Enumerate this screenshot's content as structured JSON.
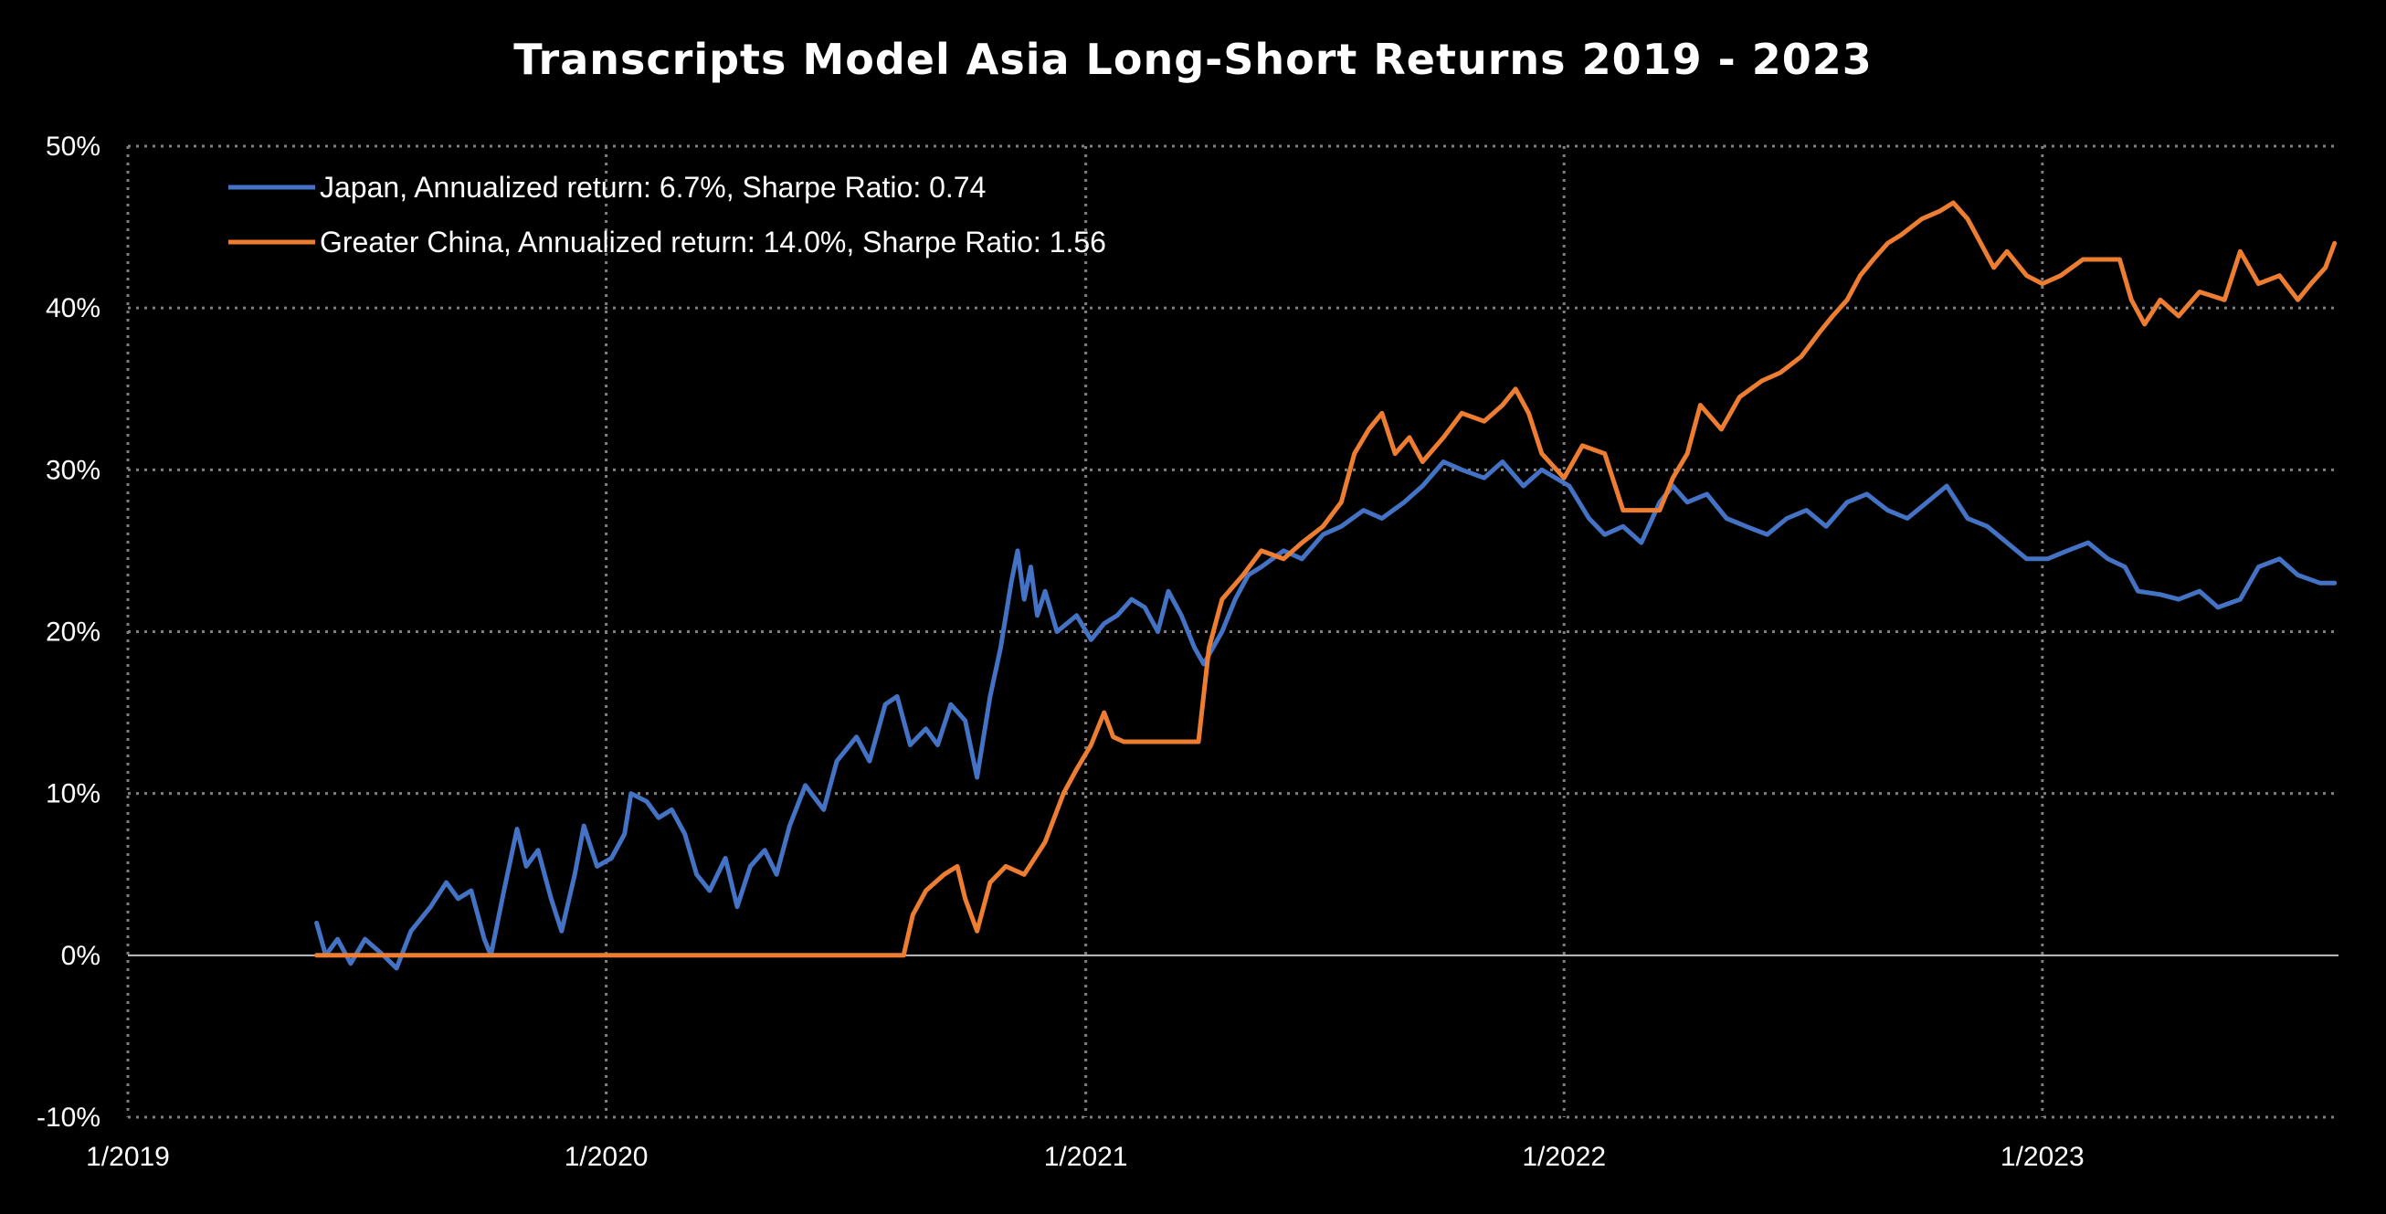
{
  "chart_data": {
    "type": "line",
    "title": "Transcripts Model Asia Long-Short Returns 2019 - 2023",
    "xlabel": "",
    "ylabel": "",
    "x_ticks": [
      "1/2019",
      "1/2020",
      "1/2021",
      "1/2022",
      "1/2023"
    ],
    "x_tick_values": [
      "2019-01-01",
      "2020-01-01",
      "2021-01-01",
      "2022-01-01",
      "2023-01-01"
    ],
    "xlim": [
      "2019-01-01",
      "2023-08-15"
    ],
    "y_ticks": [
      "-10%",
      "0%",
      "10%",
      "20%",
      "30%",
      "40%",
      "50%"
    ],
    "y_tick_values": [
      -10,
      0,
      10,
      20,
      30,
      40,
      50
    ],
    "ylim": [
      -10,
      50
    ],
    "grid": true,
    "legend_position": "top-left",
    "series": [
      {
        "name": "Japan, Annualized return: 6.7%, Sharpe Ratio: 0.74",
        "color": "#4472C4",
        "points": [
          [
            "2019-05-25",
            2.0
          ],
          [
            "2019-06-01",
            0.0
          ],
          [
            "2019-06-10",
            1.0
          ],
          [
            "2019-06-20",
            -0.5
          ],
          [
            "2019-07-01",
            1.0
          ],
          [
            "2019-07-15",
            0.0
          ],
          [
            "2019-07-25",
            -0.8
          ],
          [
            "2019-08-05",
            1.5
          ],
          [
            "2019-08-20",
            3.0
          ],
          [
            "2019-09-01",
            4.5
          ],
          [
            "2019-09-10",
            3.5
          ],
          [
            "2019-09-20",
            4.0
          ],
          [
            "2019-09-30",
            1.0
          ],
          [
            "2019-10-05",
            0.0
          ],
          [
            "2019-10-15",
            4.0
          ],
          [
            "2019-10-25",
            7.8
          ],
          [
            "2019-11-01",
            5.5
          ],
          [
            "2019-11-10",
            6.5
          ],
          [
            "2019-11-20",
            3.5
          ],
          [
            "2019-11-28",
            1.5
          ],
          [
            "2019-12-08",
            5.0
          ],
          [
            "2019-12-15",
            8.0
          ],
          [
            "2019-12-25",
            5.5
          ],
          [
            "2020-01-05",
            6.0
          ],
          [
            "2020-01-15",
            7.5
          ],
          [
            "2020-01-20",
            10.0
          ],
          [
            "2020-02-01",
            9.5
          ],
          [
            "2020-02-10",
            8.5
          ],
          [
            "2020-02-20",
            9.0
          ],
          [
            "2020-03-01",
            7.5
          ],
          [
            "2020-03-10",
            5.0
          ],
          [
            "2020-03-20",
            4.0
          ],
          [
            "2020-04-01",
            6.0
          ],
          [
            "2020-04-10",
            3.0
          ],
          [
            "2020-04-20",
            5.5
          ],
          [
            "2020-05-01",
            6.5
          ],
          [
            "2020-05-10",
            5.0
          ],
          [
            "2020-05-20",
            8.0
          ],
          [
            "2020-06-01",
            10.5
          ],
          [
            "2020-06-15",
            9.0
          ],
          [
            "2020-06-25",
            12.0
          ],
          [
            "2020-07-10",
            13.5
          ],
          [
            "2020-07-20",
            12.0
          ],
          [
            "2020-08-01",
            15.5
          ],
          [
            "2020-08-10",
            16.0
          ],
          [
            "2020-08-20",
            13.0
          ],
          [
            "2020-09-01",
            14.0
          ],
          [
            "2020-09-10",
            13.0
          ],
          [
            "2020-09-20",
            15.5
          ],
          [
            "2020-10-01",
            14.5
          ],
          [
            "2020-10-10",
            11.0
          ],
          [
            "2020-10-20",
            16.0
          ],
          [
            "2020-10-28",
            19.0
          ],
          [
            "2020-11-05",
            23.0
          ],
          [
            "2020-11-10",
            25.0
          ],
          [
            "2020-11-15",
            22.0
          ],
          [
            "2020-11-20",
            24.0
          ],
          [
            "2020-11-25",
            21.0
          ],
          [
            "2020-12-01",
            22.5
          ],
          [
            "2020-12-10",
            20.0
          ],
          [
            "2020-12-25",
            21.0
          ],
          [
            "2021-01-05",
            19.5
          ],
          [
            "2021-01-15",
            20.5
          ],
          [
            "2021-01-25",
            21.0
          ],
          [
            "2021-02-05",
            22.0
          ],
          [
            "2021-02-15",
            21.5
          ],
          [
            "2021-02-25",
            20.0
          ],
          [
            "2021-03-05",
            22.5
          ],
          [
            "2021-03-15",
            21.0
          ],
          [
            "2021-03-25",
            19.0
          ],
          [
            "2021-04-01",
            18.0
          ],
          [
            "2021-04-15",
            20.0
          ],
          [
            "2021-04-25",
            22.0
          ],
          [
            "2021-05-05",
            23.5
          ],
          [
            "2021-05-15",
            24.0
          ],
          [
            "2021-06-01",
            25.0
          ],
          [
            "2021-06-15",
            24.5
          ],
          [
            "2021-07-01",
            26.0
          ],
          [
            "2021-07-15",
            26.5
          ],
          [
            "2021-08-01",
            27.5
          ],
          [
            "2021-08-15",
            27.0
          ],
          [
            "2021-09-01",
            28.0
          ],
          [
            "2021-09-15",
            29.0
          ],
          [
            "2021-10-01",
            30.5
          ],
          [
            "2021-10-15",
            30.0
          ],
          [
            "2021-11-01",
            29.5
          ],
          [
            "2021-11-15",
            30.5
          ],
          [
            "2021-12-01",
            29.0
          ],
          [
            "2021-12-15",
            30.0
          ],
          [
            "2022-01-05",
            29.0
          ],
          [
            "2022-01-20",
            27.0
          ],
          [
            "2022-02-01",
            26.0
          ],
          [
            "2022-02-15",
            26.5
          ],
          [
            "2022-03-01",
            25.5
          ],
          [
            "2022-03-15",
            28.0
          ],
          [
            "2022-03-25",
            29.0
          ],
          [
            "2022-04-05",
            28.0
          ],
          [
            "2022-04-20",
            28.5
          ],
          [
            "2022-05-05",
            27.0
          ],
          [
            "2022-05-20",
            26.5
          ],
          [
            "2022-06-05",
            26.0
          ],
          [
            "2022-06-20",
            27.0
          ],
          [
            "2022-07-05",
            27.5
          ],
          [
            "2022-07-20",
            26.5
          ],
          [
            "2022-08-05",
            28.0
          ],
          [
            "2022-08-20",
            28.5
          ],
          [
            "2022-09-05",
            27.5
          ],
          [
            "2022-09-20",
            27.0
          ],
          [
            "2022-10-05",
            28.0
          ],
          [
            "2022-10-20",
            29.0
          ],
          [
            "2022-11-05",
            27.0
          ],
          [
            "2022-11-20",
            26.5
          ],
          [
            "2022-12-05",
            25.5
          ],
          [
            "2022-12-20",
            24.5
          ],
          [
            "2023-01-05",
            24.5
          ],
          [
            "2023-01-20",
            25.0
          ],
          [
            "2023-02-05",
            25.5
          ],
          [
            "2023-02-20",
            24.5
          ],
          [
            "2023-03-05",
            24.0
          ],
          [
            "2023-03-15",
            22.5
          ],
          [
            "2023-04-01",
            22.3
          ],
          [
            "2023-04-15",
            22.0
          ],
          [
            "2023-05-01",
            22.5
          ],
          [
            "2023-05-15",
            21.5
          ],
          [
            "2023-06-01",
            22.0
          ],
          [
            "2023-06-15",
            24.0
          ],
          [
            "2023-07-01",
            24.5
          ],
          [
            "2023-07-15",
            23.5
          ],
          [
            "2023-08-01",
            23.0
          ],
          [
            "2023-08-12",
            23.0
          ]
        ]
      },
      {
        "name": "Greater China, Annualized return: 14.0%, Sharpe Ratio: 1.56",
        "color": "#ED7D31",
        "points": [
          [
            "2019-05-25",
            0.0
          ],
          [
            "2020-08-15",
            0.0
          ],
          [
            "2020-08-22",
            2.5
          ],
          [
            "2020-09-01",
            4.0
          ],
          [
            "2020-09-15",
            5.0
          ],
          [
            "2020-09-25",
            5.5
          ],
          [
            "2020-10-01",
            3.5
          ],
          [
            "2020-10-10",
            1.5
          ],
          [
            "2020-10-20",
            4.5
          ],
          [
            "2020-11-01",
            5.5
          ],
          [
            "2020-11-15",
            5.0
          ],
          [
            "2020-12-01",
            7.0
          ],
          [
            "2020-12-15",
            10.0
          ],
          [
            "2020-12-25",
            11.5
          ],
          [
            "2021-01-05",
            13.0
          ],
          [
            "2021-01-15",
            15.0
          ],
          [
            "2021-01-22",
            13.5
          ],
          [
            "2021-01-30",
            13.2
          ],
          [
            "2021-03-28",
            13.2
          ],
          [
            "2021-04-05",
            19.0
          ],
          [
            "2021-04-15",
            22.0
          ],
          [
            "2021-05-01",
            23.5
          ],
          [
            "2021-05-15",
            25.0
          ],
          [
            "2021-06-01",
            24.5
          ],
          [
            "2021-06-15",
            25.5
          ],
          [
            "2021-07-01",
            26.5
          ],
          [
            "2021-07-15",
            28.0
          ],
          [
            "2021-07-25",
            31.0
          ],
          [
            "2021-08-05",
            32.5
          ],
          [
            "2021-08-15",
            33.5
          ],
          [
            "2021-08-25",
            31.0
          ],
          [
            "2021-09-05",
            32.0
          ],
          [
            "2021-09-15",
            30.5
          ],
          [
            "2021-10-01",
            32.0
          ],
          [
            "2021-10-15",
            33.5
          ],
          [
            "2021-11-01",
            33.0
          ],
          [
            "2021-11-15",
            34.0
          ],
          [
            "2021-11-25",
            35.0
          ],
          [
            "2021-12-05",
            33.5
          ],
          [
            "2021-12-15",
            31.0
          ],
          [
            "2022-01-01",
            29.5
          ],
          [
            "2022-01-15",
            31.5
          ],
          [
            "2022-02-01",
            31.0
          ],
          [
            "2022-02-15",
            27.5
          ],
          [
            "2022-03-15",
            27.5
          ],
          [
            "2022-03-25",
            29.5
          ],
          [
            "2022-04-05",
            31.0
          ],
          [
            "2022-04-15",
            34.0
          ],
          [
            "2022-05-01",
            32.5
          ],
          [
            "2022-05-15",
            34.5
          ],
          [
            "2022-06-01",
            35.5
          ],
          [
            "2022-06-15",
            36.0
          ],
          [
            "2022-07-01",
            37.0
          ],
          [
            "2022-07-15",
            38.5
          ],
          [
            "2022-07-25",
            39.5
          ],
          [
            "2022-08-05",
            40.5
          ],
          [
            "2022-08-15",
            42.0
          ],
          [
            "2022-08-25",
            43.0
          ],
          [
            "2022-09-05",
            44.0
          ],
          [
            "2022-09-15",
            44.5
          ],
          [
            "2022-10-01",
            45.5
          ],
          [
            "2022-10-15",
            46.0
          ],
          [
            "2022-10-25",
            46.5
          ],
          [
            "2022-11-05",
            45.5
          ],
          [
            "2022-11-15",
            44.0
          ],
          [
            "2022-11-25",
            42.5
          ],
          [
            "2022-12-05",
            43.5
          ],
          [
            "2022-12-20",
            42.0
          ],
          [
            "2023-01-01",
            41.5
          ],
          [
            "2023-01-15",
            42.0
          ],
          [
            "2023-02-01",
            43.0
          ],
          [
            "2023-03-01",
            43.0
          ],
          [
            "2023-03-10",
            40.5
          ],
          [
            "2023-03-20",
            39.0
          ],
          [
            "2023-04-01",
            40.5
          ],
          [
            "2023-04-15",
            39.5
          ],
          [
            "2023-05-01",
            41.0
          ],
          [
            "2023-05-20",
            40.5
          ],
          [
            "2023-06-01",
            43.5
          ],
          [
            "2023-06-15",
            41.5
          ],
          [
            "2023-07-01",
            42.0
          ],
          [
            "2023-07-15",
            40.5
          ],
          [
            "2023-07-25",
            41.5
          ],
          [
            "2023-08-05",
            42.5
          ],
          [
            "2023-08-12",
            44.0
          ]
        ]
      }
    ],
    "axis_color": "#BFBFBF",
    "grid_color": "#7F7F7F",
    "background": "#000000",
    "text_color": "#FFFFFF"
  }
}
